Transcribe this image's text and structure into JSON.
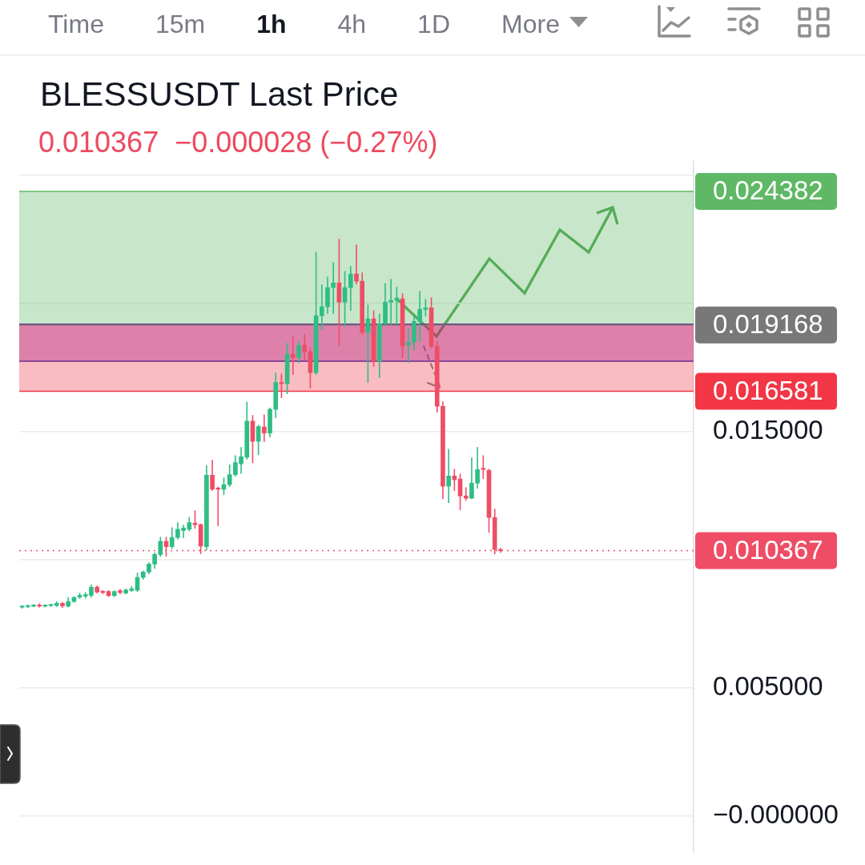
{
  "chart_data": {
    "type": "candlestick",
    "title": "BLESSUSDT Last Price",
    "subtitle": "0.010367  −0.000028 (−0.27%)",
    "annotations": [
      "Time",
      "15m",
      "1h",
      "4h",
      "1D",
      "More"
    ],
    "categories": [
      null,
      null,
      null,
      null,
      null,
      null,
      null,
      null,
      null,
      null,
      null,
      null,
      null,
      null,
      null,
      null,
      null,
      null,
      null,
      null,
      null,
      null,
      null,
      null,
      null,
      null,
      null,
      null,
      null,
      null,
      null,
      null,
      null,
      null,
      null,
      null,
      null,
      null,
      null,
      null,
      null,
      null,
      null,
      null,
      null,
      null,
      null,
      null,
      null,
      null,
      null,
      null,
      null,
      null,
      null,
      null,
      null,
      null,
      null,
      null,
      null,
      null,
      null,
      null,
      null,
      null,
      null,
      null,
      null,
      null,
      null,
      null,
      null,
      null,
      null,
      null,
      null,
      null,
      null,
      null,
      null,
      null,
      null,
      null,
      null,
      null,
      null,
      null,
      null,
      null,
      null,
      null,
      null,
      null,
      null,
      null,
      null,
      null,
      null,
      null,
      null,
      null,
      null,
      null,
      null,
      null,
      null,
      null,
      null,
      null,
      null,
      null,
      null,
      null,
      null,
      null,
      null
    ],
    "ohlc": [
      [
        0.00816,
        0.0082,
        0.00813,
        0.00819
      ],
      [
        0.00818,
        0.00822,
        0.00815,
        0.0082
      ],
      [
        0.0082,
        0.00825,
        0.00818,
        0.00824
      ],
      [
        0.00825,
        0.00828,
        0.00817,
        0.0082
      ],
      [
        0.0082,
        0.00824,
        0.00818,
        0.00823
      ],
      [
        0.00822,
        0.00826,
        0.0082,
        0.00824
      ],
      [
        0.00822,
        0.00836,
        0.0082,
        0.00831
      ],
      [
        0.00831,
        0.00833,
        0.00816,
        0.00821
      ],
      [
        0.0082,
        0.00853,
        0.00818,
        0.00838
      ],
      [
        0.00838,
        0.00856,
        0.00836,
        0.00854
      ],
      [
        0.00855,
        0.0087,
        0.00851,
        0.00862
      ],
      [
        0.00859,
        0.00872,
        0.00853,
        0.00865
      ],
      [
        0.00862,
        0.00901,
        0.00856,
        0.00894
      ],
      [
        0.00894,
        0.00898,
        0.00873,
        0.00875
      ],
      [
        0.00878,
        0.0088,
        0.0087,
        0.00873
      ],
      [
        0.00877,
        0.0088,
        0.00858,
        0.00861
      ],
      [
        0.00861,
        0.00879,
        0.00858,
        0.00877
      ],
      [
        0.0088,
        0.00885,
        0.00869,
        0.00873
      ],
      [
        0.00871,
        0.00886,
        0.00869,
        0.00883
      ],
      [
        0.00881,
        0.00896,
        0.00878,
        0.00888
      ],
      [
        0.00882,
        0.00948,
        0.00878,
        0.00932
      ],
      [
        0.00932,
        0.00956,
        0.00926,
        0.00953
      ],
      [
        0.00953,
        0.00988,
        0.00948,
        0.00984
      ],
      [
        0.00984,
        0.01026,
        0.00969,
        0.01022
      ],
      [
        0.01021,
        0.01088,
        0.01015,
        0.01073
      ],
      [
        0.01073,
        0.01088,
        0.01016,
        0.01052
      ],
      [
        0.01052,
        0.01125,
        0.01046,
        0.01088
      ],
      [
        0.01088,
        0.01144,
        0.01082,
        0.0112
      ],
      [
        0.01115,
        0.01135,
        0.01088,
        0.01125
      ],
      [
        0.0112,
        0.01165,
        0.01114,
        0.01146
      ],
      [
        0.01144,
        0.01191,
        0.01125,
        0.01138
      ],
      [
        0.01138,
        0.0114,
        0.01026,
        0.01054
      ],
      [
        0.01052,
        0.01367,
        0.0104,
        0.01331
      ],
      [
        0.01331,
        0.01388,
        0.01272,
        0.01276
      ],
      [
        0.01281,
        0.01283,
        0.01135,
        0.01276
      ],
      [
        0.01276,
        0.01319,
        0.01256,
        0.01294
      ],
      [
        0.01294,
        0.0137,
        0.01288,
        0.01333
      ],
      [
        0.01333,
        0.01406,
        0.01328,
        0.0138
      ],
      [
        0.01375,
        0.01438,
        0.01339,
        0.01403
      ],
      [
        0.01401,
        0.01615,
        0.01395,
        0.01542
      ],
      [
        0.01542,
        0.01563,
        0.0138,
        0.01463
      ],
      [
        0.01463,
        0.01525,
        0.01412,
        0.01521
      ],
      [
        0.01519,
        0.01565,
        0.01463,
        0.01495
      ],
      [
        0.01495,
        0.01592,
        0.01481,
        0.01588
      ],
      [
        0.01588,
        0.01729,
        0.01557,
        0.01693
      ],
      [
        0.01693,
        0.01725,
        0.01634,
        0.01688
      ],
      [
        0.01688,
        0.01844,
        0.0165,
        0.01803
      ],
      [
        0.01803,
        0.01869,
        0.01725,
        0.0179
      ],
      [
        0.0179,
        0.0185,
        0.01772,
        0.01838
      ],
      [
        0.01838,
        0.01878,
        0.01781,
        0.01813
      ],
      [
        0.01813,
        0.01825,
        0.01672,
        0.01731
      ],
      [
        0.01731,
        0.022,
        0.01725,
        0.01953
      ],
      [
        0.01953,
        0.02072,
        0.019,
        0.01988
      ],
      [
        0.01988,
        0.02103,
        0.01963,
        0.02063
      ],
      [
        0.02063,
        0.02159,
        0.01963,
        0.02081
      ],
      [
        0.02081,
        0.0225,
        0.01838,
        0.02006
      ],
      [
        0.02006,
        0.02125,
        0.01916,
        0.02063
      ],
      [
        0.02063,
        0.02144,
        0.01975,
        0.02116
      ],
      [
        0.02116,
        0.02228,
        0.02078,
        0.02088
      ],
      [
        0.02088,
        0.02119,
        0.01881,
        0.01888
      ],
      [
        0.01888,
        0.01994,
        0.01694,
        0.01941
      ],
      [
        0.01941,
        0.01972,
        0.01756,
        0.01775
      ],
      [
        0.01775,
        0.01959,
        0.01713,
        0.01922
      ],
      [
        0.01922,
        0.02078,
        0.0192,
        0.02006
      ],
      [
        0.02006,
        0.02094,
        0.01922,
        0.02013
      ],
      [
        0.02013,
        0.02063,
        0.01922,
        0.02022
      ],
      [
        0.02019,
        0.02038,
        0.0179,
        0.01834
      ],
      [
        0.01838,
        0.019,
        0.01772,
        0.0185
      ],
      [
        0.0185,
        0.01959,
        0.01822,
        0.01931
      ],
      [
        0.01931,
        0.02047,
        0.01853,
        0.01978
      ],
      [
        0.01978,
        0.02016,
        0.01953,
        0.01984
      ],
      [
        0.01984,
        0.02022,
        0.01828,
        0.01834
      ],
      [
        0.01834,
        0.01853,
        0.01578,
        0.016
      ],
      [
        0.016,
        0.01616,
        0.01241,
        0.01288
      ],
      [
        0.01288,
        0.01431,
        0.01225,
        0.01328
      ],
      [
        0.01328,
        0.01353,
        0.01272,
        0.01313
      ],
      [
        0.01316,
        0.01334,
        0.01197,
        0.0125
      ],
      [
        0.0125,
        0.01281,
        0.01234,
        0.01241
      ],
      [
        0.01241,
        0.01397,
        0.01241,
        0.013
      ],
      [
        0.013,
        0.01438,
        0.01281,
        0.01353
      ],
      [
        0.01356,
        0.01406,
        0.01319,
        0.01353
      ],
      [
        0.0135,
        0.01353,
        0.01109,
        0.01166
      ],
      [
        0.01166,
        0.01197,
        0.01025,
        0.01041
      ],
      [
        0.01041,
        0.01044,
        0.01031,
        0.010367
      ],
      null,
      null,
      null,
      null,
      null,
      null,
      null,
      null,
      null,
      null,
      null,
      null,
      null,
      null,
      null,
      null,
      null,
      null,
      null,
      null,
      null,
      null,
      null,
      null,
      null,
      null,
      null,
      null,
      null,
      null,
      null,
      null,
      null
    ],
    "colors": [
      "#2ebd85",
      "#2ebd85",
      "#2ebd85",
      "#ef4d66",
      "#2ebd85",
      "#2ebd85",
      "#2ebd85",
      "#ef4d66",
      "#2ebd85",
      "#2ebd85",
      "#2ebd85",
      "#2ebd85",
      "#2ebd85",
      "#ef4d66",
      "#ef4d66",
      "#ef4d66",
      "#2ebd85",
      "#ef4d66",
      "#2ebd85",
      "#2ebd85",
      "#2ebd85",
      "#2ebd85",
      "#2ebd85",
      "#2ebd85",
      "#2ebd85",
      "#ef4d66",
      "#2ebd85",
      "#2ebd85",
      "#2ebd85",
      "#2ebd85",
      "#ef4d66",
      "#ef4d66",
      "#2ebd85",
      "#ef4d66",
      "#ef4d66",
      "#2ebd85",
      "#2ebd85",
      "#2ebd85",
      "#2ebd85",
      "#2ebd85",
      "#ef4d66",
      "#2ebd85",
      "#ef4d66",
      "#2ebd85",
      "#2ebd85",
      "#ef4d66",
      "#2ebd85",
      "#ef4d66",
      "#2ebd85",
      "#ef4d66",
      "#ef4d66",
      "#2ebd85",
      "#2ebd85",
      "#2ebd85",
      "#2ebd85",
      "#ef4d66",
      "#2ebd85",
      "#2ebd85",
      "#ef4d66",
      "#ef4d66",
      "#2ebd85",
      "#ef4d66",
      "#2ebd85",
      "#2ebd85",
      "#2ebd85",
      "#2ebd85",
      "#ef4d66",
      "#2ebd85",
      "#2ebd85",
      "#2ebd85",
      "#2ebd85",
      "#ef4d66",
      "#ef4d66",
      "#ef4d66",
      "#2ebd85",
      "#ef4d66",
      "#ef4d66",
      "#ef4d66",
      "#2ebd85",
      "#2ebd85",
      "#ef4d66",
      "#ef4d66",
      "#ef4d66",
      "#ef4d66",
      null,
      null,
      null,
      null,
      null,
      null,
      null,
      null,
      null,
      null,
      null,
      null,
      null,
      null,
      null,
      null,
      null,
      null,
      null,
      null,
      null,
      null,
      null,
      null,
      null,
      null,
      null,
      null,
      null,
      null,
      null,
      null,
      null
    ],
    "ylim": [
      -0.0014,
      0.0256
    ],
    "yticks": [
      {
        "value": 0,
        "label": "−0.000000"
      },
      {
        "value": 0.005,
        "label": "0.005000"
      },
      {
        "value": 0.01,
        "label": null
      },
      {
        "value": 0.015,
        "label": "0.015000"
      },
      {
        "value": 0.02,
        "label": null
      },
      {
        "value": 0.025,
        "label": null
      }
    ],
    "grid": "y",
    "tick_labels": "y",
    "bands": [
      {
        "axis": "y",
        "from": 0.01776,
        "to": 0.0192,
        "color": "#8908a5"
      },
      {
        "axis": "y",
        "from": 0.019168,
        "to": 0.024382,
        "color": "#75c178"
      },
      {
        "axis": "y",
        "from": 0.016581,
        "to": 0.019168,
        "color": "#f05761"
      }
    ],
    "ref_lines": [
      {
        "axis": "y",
        "value": 0.024382,
        "label": "0.024382",
        "color": "#5fb865"
      },
      {
        "axis": "y",
        "value": 0.0192,
        "color": "#6a2c91"
      },
      {
        "axis": "y",
        "value": 0.019168,
        "label": "0.019168",
        "color": "#787878"
      },
      {
        "axis": "y",
        "value": 0.01776,
        "color": "#6a2c91"
      },
      {
        "axis": "y",
        "value": 0.016581,
        "label": "0.016581",
        "color": "#f23645"
      },
      {
        "axis": "y",
        "value": 0.010367,
        "label": "0.010367",
        "color": "#ef4d66",
        "line_style": "dotted"
      }
    ]
  }
}
